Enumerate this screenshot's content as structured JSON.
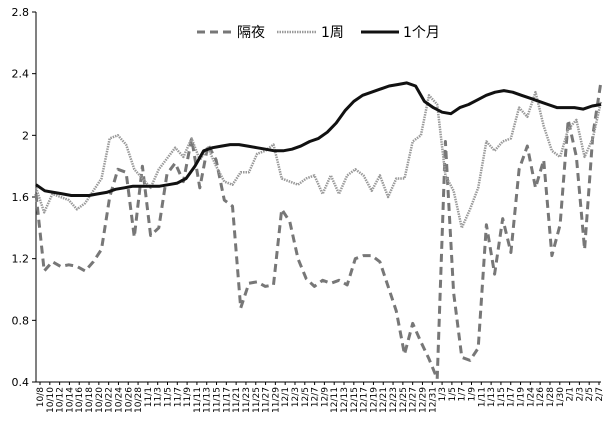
{
  "chart_data": {
    "type": "line",
    "title": "",
    "xlabel": "",
    "ylabel": "",
    "ylim": [
      0.4,
      2.8
    ],
    "yticks": [
      0.4,
      0.8,
      1.2,
      1.6,
      2.0,
      2.4,
      2.8
    ],
    "ytick_labels": [
      "0.4",
      "0.8",
      "1.2",
      "1.6",
      "2",
      "2.4",
      "2.8"
    ],
    "grid": false,
    "legend_position": "top-center",
    "x_tick_labels": [
      "10/8",
      "10/10",
      "10/12",
      "10/14",
      "10/16",
      "10/18",
      "10/20",
      "10/22",
      "10/24",
      "10/26",
      "10/28",
      "11/1",
      "11/3",
      "11/5",
      "11/7",
      "11/9",
      "11/11",
      "11/13",
      "11/15",
      "11/17",
      "11/21",
      "11/23",
      "11/25",
      "11/27",
      "11/29",
      "12/1",
      "12/3",
      "12/5",
      "12/7",
      "12/9",
      "12/11",
      "12/13",
      "12/15",
      "12/17",
      "12/19",
      "12/21",
      "12/23",
      "12/25",
      "12/27",
      "12/29",
      "12/31",
      "1/3",
      "1/5",
      "1/7",
      "1/9",
      "1/11",
      "1/13",
      "1/15",
      "1/17",
      "1/19",
      "1/24",
      "1/26",
      "1/28",
      "1/30",
      "2/1",
      "2/3",
      "2/5",
      "2/7"
    ],
    "series": [
      {
        "name": "隔夜",
        "style": "dashed",
        "color": "#777777",
        "values": [
          1.62,
          1.12,
          1.18,
          1.15,
          1.16,
          1.15,
          1.12,
          1.18,
          1.26,
          1.6,
          1.78,
          1.76,
          1.34,
          1.8,
          1.35,
          1.4,
          1.75,
          1.82,
          1.7,
          1.98,
          1.66,
          1.94,
          1.84,
          1.58,
          1.54,
          0.88,
          1.04,
          1.05,
          1.02,
          1.03,
          1.52,
          1.44,
          1.2,
          1.07,
          1.02,
          1.06,
          1.04,
          1.06,
          1.03,
          1.2,
          1.22,
          1.22,
          1.18,
          1.02,
          0.86,
          0.58,
          0.78,
          0.66,
          0.55,
          0.42,
          1.96,
          0.98,
          0.56,
          0.54,
          0.62,
          1.42,
          1.1,
          1.46,
          1.24,
          1.78,
          1.93,
          1.66,
          1.84,
          1.22,
          1.42,
          2.1,
          1.86,
          1.26,
          2.0,
          2.35
        ]
      },
      {
        "name": "1周",
        "style": "solid-thin",
        "color": "#9a9a9a",
        "values": [
          1.66,
          1.5,
          1.62,
          1.6,
          1.58,
          1.52,
          1.56,
          1.64,
          1.72,
          1.98,
          2.0,
          1.94,
          1.78,
          1.72,
          1.66,
          1.78,
          1.85,
          1.92,
          1.86,
          1.98,
          1.84,
          1.92,
          1.8,
          1.7,
          1.68,
          1.76,
          1.76,
          1.88,
          1.9,
          1.94,
          1.72,
          1.7,
          1.68,
          1.72,
          1.74,
          1.62,
          1.74,
          1.62,
          1.74,
          1.78,
          1.74,
          1.64,
          1.74,
          1.6,
          1.72,
          1.72,
          1.96,
          2.0,
          2.26,
          2.2,
          1.74,
          1.64,
          1.4,
          1.52,
          1.66,
          1.96,
          1.9,
          1.96,
          1.98,
          2.18,
          2.12,
          2.28,
          2.06,
          1.9,
          1.86,
          2.04,
          2.1,
          1.86,
          1.98,
          2.22
        ]
      },
      {
        "name": "1个月",
        "style": "solid-thick",
        "color": "#111111",
        "values": [
          1.68,
          1.64,
          1.63,
          1.62,
          1.61,
          1.61,
          1.61,
          1.62,
          1.63,
          1.65,
          1.66,
          1.67,
          1.67,
          1.67,
          1.67,
          1.68,
          1.69,
          1.72,
          1.8,
          1.9,
          1.92,
          1.93,
          1.94,
          1.94,
          1.93,
          1.92,
          1.91,
          1.9,
          1.9,
          1.91,
          1.93,
          1.96,
          1.98,
          2.02,
          2.08,
          2.16,
          2.22,
          2.26,
          2.28,
          2.3,
          2.32,
          2.33,
          2.34,
          2.32,
          2.22,
          2.18,
          2.15,
          2.14,
          2.18,
          2.2,
          2.23,
          2.26,
          2.28,
          2.29,
          2.28,
          2.26,
          2.24,
          2.22,
          2.2,
          2.18,
          2.18,
          2.18,
          2.17,
          2.19,
          2.2
        ]
      }
    ]
  }
}
